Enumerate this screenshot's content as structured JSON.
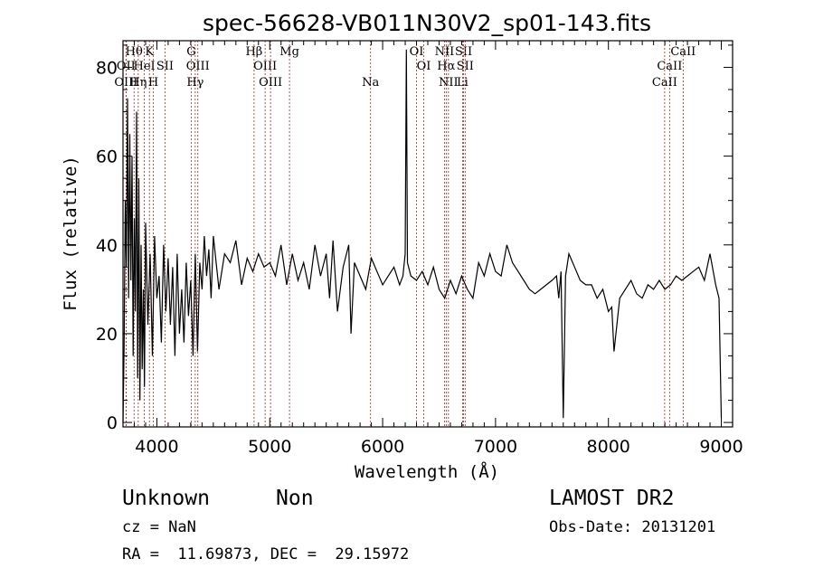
{
  "chart_data": {
    "type": "line",
    "title": "spec-56628-VB011N30V2_sp01-143.fits",
    "xlabel": "Wavelength (Å)",
    "ylabel": "Flux (relative)",
    "xlim": [
      3700,
      9100
    ],
    "ylim": [
      -1,
      86
    ],
    "x_ticks": [
      4000,
      5000,
      6000,
      7000,
      8000,
      9000
    ],
    "y_ticks": [
      0,
      20,
      40,
      60,
      80
    ],
    "grid": false,
    "series": [
      {
        "x": [
          3700,
          3710,
          3720,
          3730,
          3740,
          3750,
          3760,
          3770,
          3780,
          3790,
          3800,
          3810,
          3820,
          3830,
          3840,
          3850,
          3860,
          3870,
          3880,
          3890,
          3900,
          3920,
          3940,
          3960,
          3980,
          4000,
          4020,
          4040,
          4060,
          4080,
          4100,
          4120,
          4140,
          4160,
          4180,
          4200,
          4220,
          4240,
          4260,
          4280,
          4300,
          4320,
          4340,
          4360,
          4380,
          4400,
          4420,
          4440,
          4460,
          4480,
          4500,
          4550,
          4600,
          4650,
          4700,
          4750,
          4800,
          4850,
          4900,
          4950,
          5000,
          5050,
          5100,
          5150,
          5200,
          5250,
          5300,
          5350,
          5400,
          5450,
          5500,
          5530,
          5560,
          5600,
          5650,
          5700,
          5720,
          5750,
          5800,
          5850,
          5900,
          5950,
          6000,
          6050,
          6100,
          6150,
          6180,
          6200,
          6210,
          6220,
          6250,
          6300,
          6350,
          6400,
          6450,
          6500,
          6550,
          6600,
          6650,
          6700,
          6750,
          6800,
          6850,
          6900,
          6950,
          7000,
          7050,
          7100,
          7150,
          7200,
          7250,
          7300,
          7350,
          7400,
          7450,
          7500,
          7540,
          7560,
          7580,
          7600,
          7620,
          7650,
          7700,
          7750,
          7800,
          7850,
          7900,
          7950,
          8000,
          8030,
          8050,
          8100,
          8150,
          8200,
          8250,
          8300,
          8350,
          8400,
          8450,
          8500,
          8550,
          8600,
          8650,
          8700,
          8750,
          8800,
          8850,
          8900,
          8950,
          8980,
          9000
        ],
        "y": [
          0,
          17,
          50,
          35,
          73,
          28,
          65,
          32,
          60,
          15,
          46,
          25,
          70,
          10,
          55,
          5,
          40,
          12,
          30,
          8,
          45,
          22,
          38,
          15,
          42,
          28,
          33,
          18,
          40,
          25,
          37,
          22,
          35,
          15,
          38,
          20,
          30,
          18,
          36,
          24,
          32,
          15,
          38,
          16,
          36,
          30,
          42,
          33,
          39,
          28,
          42,
          30,
          38,
          36,
          41,
          31,
          37,
          34,
          38,
          35,
          36,
          33,
          40,
          31,
          38,
          32,
          36,
          30,
          40,
          33,
          38,
          28,
          41,
          25,
          35,
          40,
          20,
          36,
          33,
          30,
          37,
          34,
          31,
          33,
          35,
          31,
          33,
          38,
          84,
          36,
          33,
          32,
          34,
          31,
          35,
          30,
          28,
          32,
          29,
          33,
          30,
          28,
          36,
          33,
          38,
          34,
          33,
          40,
          36,
          34,
          32,
          30,
          29,
          30,
          31,
          32,
          33,
          28,
          34,
          1,
          33,
          38,
          35,
          32,
          31,
          31,
          28,
          30,
          25,
          26,
          16,
          28,
          30,
          32,
          29,
          28,
          31,
          30,
          32,
          30,
          31,
          33,
          32,
          33,
          34,
          35,
          32,
          38,
          31,
          28,
          1
        ]
      }
    ],
    "line_markers": [
      {
        "label": "Hθ",
        "x": 3798,
        "row": 1
      },
      {
        "label": "K",
        "x": 3934,
        "row": 1
      },
      {
        "label": "G",
        "x": 4304,
        "row": 1
      },
      {
        "label": "Hβ",
        "x": 4861,
        "row": 1
      },
      {
        "label": "Mg",
        "x": 5175,
        "row": 1
      },
      {
        "label": "OI",
        "x": 6300,
        "row": 1
      },
      {
        "label": "NII",
        "x": 6548,
        "row": 1
      },
      {
        "label": "SII",
        "x": 6717,
        "row": 1
      },
      {
        "label": "CaII",
        "x": 8662,
        "row": 1
      },
      {
        "label": "OII",
        "x": 3727,
        "row": 2
      },
      {
        "label": "HeI",
        "x": 3889,
        "row": 2
      },
      {
        "label": "SII",
        "x": 4072,
        "row": 2
      },
      {
        "label": "OIII",
        "x": 4363,
        "row": 2
      },
      {
        "label": "OIII",
        "x": 4959,
        "row": 2
      },
      {
        "label": "OI",
        "x": 6364,
        "row": 2
      },
      {
        "label": "Hα",
        "x": 6563,
        "row": 2
      },
      {
        "label": "SII",
        "x": 6731,
        "row": 2
      },
      {
        "label": "CaII",
        "x": 8542,
        "row": 2
      },
      {
        "label": "OIII",
        "x": 3727,
        "row": 3
      },
      {
        "label": "Hη",
        "x": 3835,
        "row": 3
      },
      {
        "label": "H",
        "x": 3969,
        "row": 3
      },
      {
        "label": "Hγ",
        "x": 4340,
        "row": 3
      },
      {
        "label": "OIII",
        "x": 5007,
        "row": 3
      },
      {
        "label": "Na",
        "x": 5893,
        "row": 3
      },
      {
        "label": "NII",
        "x": 6583,
        "row": 3
      },
      {
        "label": "Li",
        "x": 6708,
        "row": 3
      },
      {
        "label": "CaII",
        "x": 8498,
        "row": 3
      }
    ]
  },
  "info": {
    "object_class": "Unknown",
    "object_subclass": "Non",
    "survey": "LAMOST DR2",
    "redshift": "cz = NaN",
    "obs_date": "Obs-Date: 20131201",
    "coords": "RA =  11.69873, DEC =  29.15972"
  }
}
